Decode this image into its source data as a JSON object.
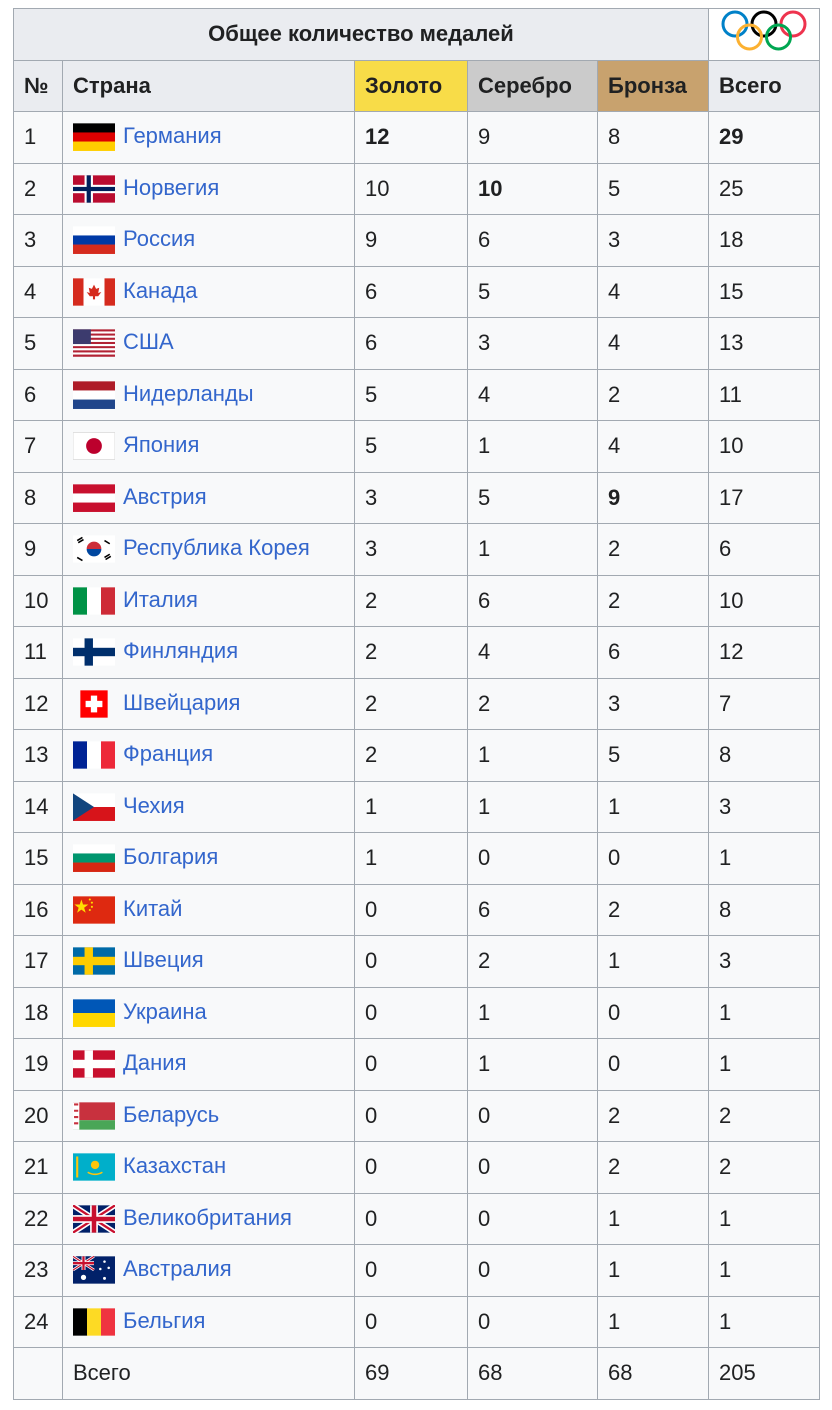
{
  "table": {
    "title": "Общее количество медалей",
    "columns": [
      "№",
      "Страна",
      "Золото",
      "Серебро",
      "Бронза",
      "Всего"
    ],
    "rows": [
      [
        1,
        "Германия",
        {
          "text": 12,
          "bold": true
        },
        9,
        8,
        {
          "text": 29,
          "bold": true
        }
      ],
      [
        2,
        "Норвегия",
        10,
        {
          "text": 10,
          "bold": true
        },
        5,
        25
      ],
      [
        3,
        "Россия",
        9,
        6,
        3,
        18
      ],
      [
        4,
        "Канада",
        6,
        5,
        4,
        15
      ],
      [
        5,
        "США",
        6,
        3,
        4,
        13
      ],
      [
        6,
        "Нидерланды",
        5,
        4,
        2,
        11
      ],
      [
        7,
        "Япония",
        5,
        1,
        4,
        10
      ],
      [
        8,
        "Австрия",
        3,
        5,
        {
          "text": 9,
          "bold": true
        },
        17
      ],
      [
        9,
        "Республика Корея",
        3,
        1,
        2,
        6
      ],
      [
        10,
        "Италия",
        2,
        6,
        2,
        10
      ],
      [
        11,
        "Финляндия",
        2,
        4,
        6,
        12
      ],
      [
        12,
        "Швейцария",
        2,
        2,
        3,
        7
      ],
      [
        13,
        "Франция",
        2,
        1,
        5,
        8
      ],
      [
        14,
        "Чехия",
        1,
        1,
        1,
        3
      ],
      [
        15,
        "Болгария",
        1,
        0,
        0,
        1
      ],
      [
        16,
        "Китай",
        0,
        6,
        2,
        8
      ],
      [
        17,
        "Швеция",
        0,
        2,
        1,
        3
      ],
      [
        18,
        "Украина",
        0,
        1,
        0,
        1
      ],
      [
        19,
        "Дания",
        0,
        1,
        0,
        1
      ],
      [
        20,
        "Беларусь",
        0,
        0,
        2,
        2
      ],
      [
        21,
        "Казахстан",
        0,
        0,
        2,
        2
      ],
      [
        22,
        "Великобритания",
        0,
        0,
        1,
        1
      ],
      [
        23,
        "Австралия",
        0,
        0,
        1,
        1
      ],
      [
        24,
        "Бельгия",
        0,
        0,
        1,
        1
      ]
    ],
    "total": {
      "label": "Всего",
      "values": [
        69,
        68,
        68,
        205
      ]
    }
  }
}
